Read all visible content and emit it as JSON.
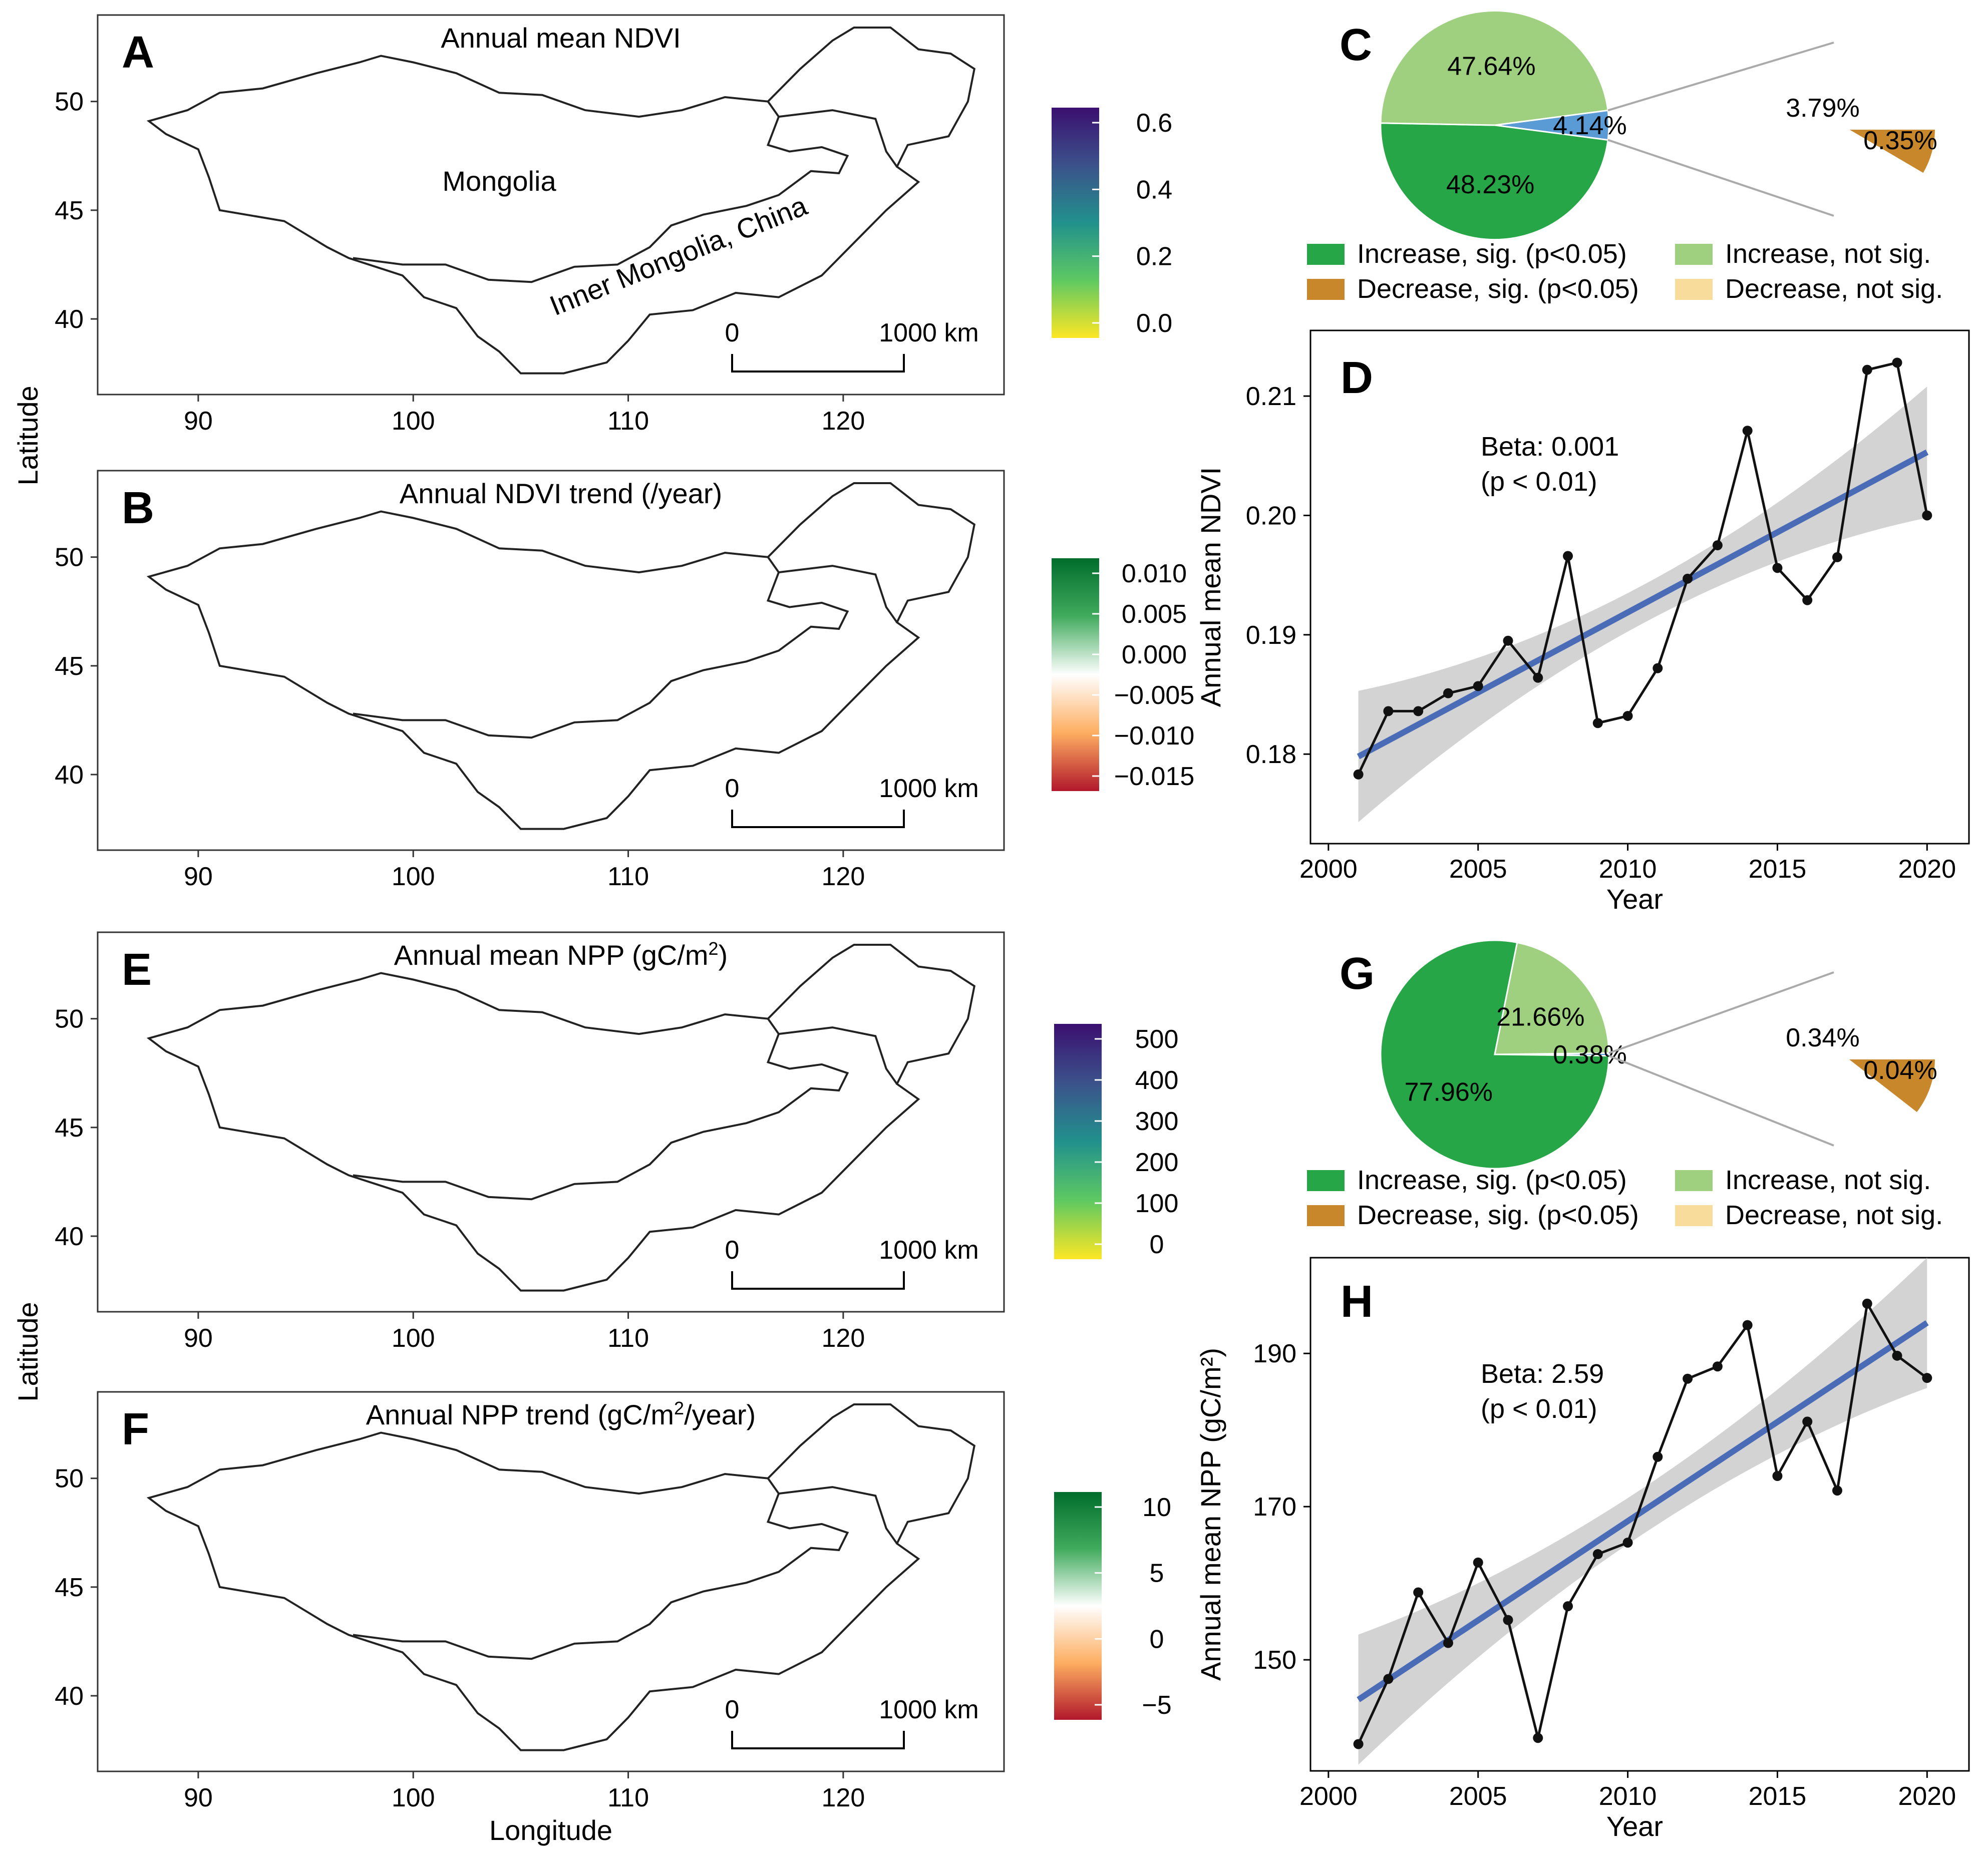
{
  "maps": [
    {
      "id": "A",
      "title": "Annual mean NDVI",
      "colorbar_ticks": [
        "0.6",
        "0.4",
        "0.2",
        "0.0"
      ],
      "colors": [
        "#3b0f70",
        "#3b528b",
        "#21918c",
        "#5ec962",
        "#fde725"
      ],
      "region_labels": [
        "Mongolia",
        "Inner Mongolia, China"
      ]
    },
    {
      "id": "B",
      "title": "Annual NDVI trend (/year)",
      "colorbar_ticks": [
        "0.010",
        "0.005",
        "0.000",
        "−0.005",
        "−0.010",
        "−0.015"
      ],
      "colors": [
        "#006d2c",
        "#41ab5d",
        "#ffffff",
        "#fdae61",
        "#b2182b"
      ]
    },
    {
      "id": "E",
      "title": "Annual mean NPP (gC/m",
      "title_sup": "2",
      "title_end": ")",
      "colorbar_ticks": [
        "500",
        "400",
        "300",
        "200",
        "100",
        "0"
      ],
      "colors": [
        "#3b0f70",
        "#3b528b",
        "#21918c",
        "#5ec962",
        "#fde725"
      ]
    },
    {
      "id": "F",
      "title": "Annual NPP trend (gC/m",
      "title_sup": "2",
      "title_end": "/year)",
      "colorbar_ticks": [
        "10",
        "5",
        "0",
        "−5"
      ],
      "colors": [
        "#006d2c",
        "#41ab5d",
        "#ffffff",
        "#fdae61",
        "#b2182b"
      ]
    }
  ],
  "map_axes": {
    "x_ticks": [
      "90",
      "100",
      "110",
      "120"
    ],
    "y_ticks": [
      "50",
      "45",
      "40"
    ],
    "xlabel": "Longitude",
    "ylabel": "Latitude",
    "scale_start": "0",
    "scale_end": "1000 km"
  },
  "pies": [
    {
      "id": "C",
      "main": [
        {
          "label": "47.64%",
          "value": 47.64,
          "color": "#9ed07f"
        },
        {
          "label": "4.14%",
          "value": 4.14,
          "color": "#5b9bd5"
        },
        {
          "label": "48.23%",
          "value": 48.23,
          "color": "#26a646"
        }
      ],
      "detail": [
        {
          "label": "3.79%",
          "value": 3.79,
          "color": "#f8dc9b"
        },
        {
          "label": "0.35%",
          "value": 0.35,
          "color": "#c8872a"
        }
      ]
    },
    {
      "id": "G",
      "main": [
        {
          "label": "21.66%",
          "value": 21.66,
          "color": "#9ed07f"
        },
        {
          "label": "0.38%",
          "value": 0.38,
          "color": "#5b9bd5"
        },
        {
          "label": "77.96%",
          "value": 77.96,
          "color": "#26a646"
        }
      ],
      "detail": [
        {
          "label": "0.34%",
          "value": 0.34,
          "color": "#f8dc9b"
        },
        {
          "label": "0.04%",
          "value": 0.04,
          "color": "#c8872a"
        }
      ]
    }
  ],
  "pie_legend": [
    {
      "label": "Increase, sig. (p<0.05)",
      "color": "#26a646"
    },
    {
      "label": "Increase, not sig.",
      "color": "#9ed07f"
    },
    {
      "label": "Decrease, sig. (p<0.05)",
      "color": "#c8872a"
    },
    {
      "label": "Decrease, not sig.",
      "color": "#f8dc9b"
    }
  ],
  "chart_data": [
    {
      "id": "D",
      "type": "line",
      "x": [
        2001,
        2002,
        2003,
        2004,
        2005,
        2006,
        2007,
        2008,
        2009,
        2010,
        2011,
        2012,
        2013,
        2014,
        2015,
        2016,
        2017,
        2018,
        2019,
        2020
      ],
      "y": [
        0.1783,
        0.1836,
        0.1836,
        0.1851,
        0.1857,
        0.1895,
        0.1864,
        0.1966,
        0.1826,
        0.1832,
        0.1872,
        0.1947,
        0.1975,
        0.2071,
        0.1956,
        0.1929,
        0.1965,
        0.2122,
        0.2128,
        0.2
      ],
      "trend": {
        "start": [
          2001,
          0.1798
        ],
        "end": [
          2020,
          0.2053
        ]
      },
      "ci_half_width_ends": 0.0055,
      "ci_half_width_mid": 0.0016,
      "xlabel": "Year",
      "ylabel": "Annual mean NDVI",
      "xlim": [
        1999.4,
        2021.4
      ],
      "ylim": [
        0.1725,
        0.2155
      ],
      "x_ticks": [
        2000,
        2005,
        2010,
        2015,
        2020
      ],
      "y_ticks": [
        0.18,
        0.19,
        0.2,
        0.21
      ],
      "y_tick_labels": [
        "0.18",
        "0.19",
        "0.20",
        "0.21"
      ],
      "annotation": [
        "Beta: 0.001",
        "(p < 0.01)"
      ]
    },
    {
      "id": "H",
      "type": "line",
      "x": [
        2001,
        2002,
        2003,
        2004,
        2005,
        2006,
        2007,
        2008,
        2009,
        2010,
        2011,
        2012,
        2013,
        2014,
        2015,
        2016,
        2017,
        2018,
        2019,
        2020
      ],
      "y": [
        139.0,
        147.5,
        158.8,
        152.2,
        162.7,
        155.2,
        139.8,
        157.0,
        163.8,
        165.3,
        176.5,
        186.7,
        188.3,
        193.7,
        174.0,
        181.1,
        172.1,
        196.5,
        189.7,
        186.8
      ],
      "trend": {
        "start": [
          2001,
          144.8
        ],
        "end": [
          2020,
          194.0
        ]
      },
      "ci_half_width_ends": 8.5,
      "ci_half_width_mid": 3.0,
      "xlabel": "Year",
      "ylabel": "Annual mean NPP (gC/m²)",
      "xlim": [
        1999.4,
        2021.4
      ],
      "ylim": [
        135.5,
        202.5
      ],
      "x_ticks": [
        2000,
        2005,
        2010,
        2015,
        2020
      ],
      "y_ticks": [
        150,
        170,
        190
      ],
      "y_tick_labels": [
        "150",
        "170",
        "190"
      ],
      "annotation": [
        "Beta: 2.59",
        "(p < 0.01)"
      ]
    }
  ]
}
